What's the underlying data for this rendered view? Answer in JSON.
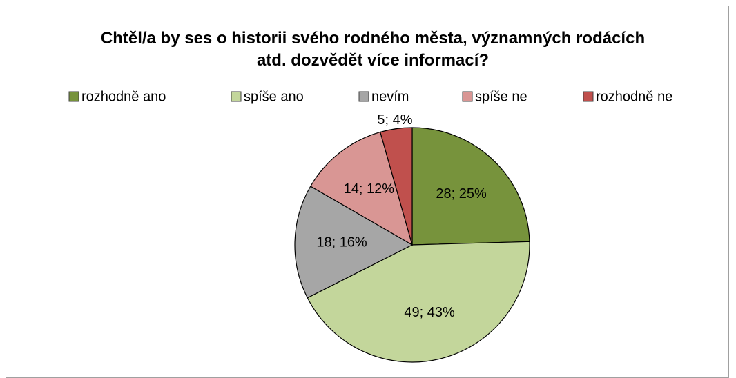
{
  "chart_data": {
    "type": "pie",
    "title": "Chtěl/a by ses o historii svého rodného města, významných rodácích atd. dozvědět více informací?",
    "categories": [
      "rozhodně ano",
      "spíše ano",
      "nevím",
      "spíše ne",
      "rozhodně ne"
    ],
    "values": [
      28,
      49,
      18,
      14,
      5
    ],
    "value_labels": [
      "28; 25%",
      "49; 43%",
      "18; 16%",
      "14; 12%",
      "5; 4%"
    ],
    "colors": [
      "#77933c",
      "#c3d69b",
      "#a6a6a6",
      "#d99694",
      "#c0504d"
    ],
    "legend": "top"
  }
}
